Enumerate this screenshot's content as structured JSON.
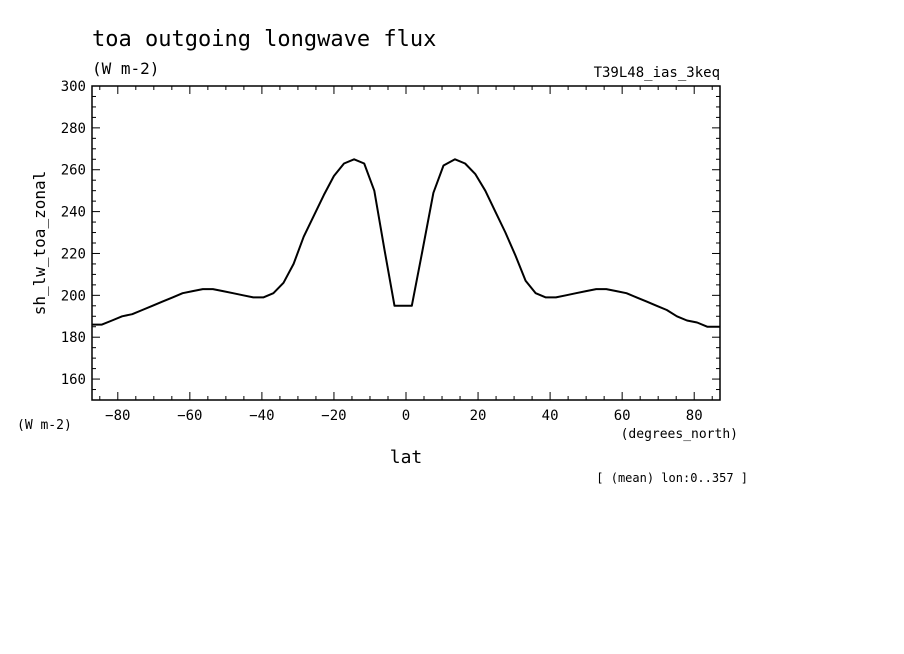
{
  "chart_data": {
    "type": "line",
    "title": "toa outgoing longwave flux",
    "subtitle": "(W m-2)",
    "experiment": "T39L48_ias_3keq",
    "ylabel": "sh_lw_toa_zonal",
    "yunits": "(W m-2)",
    "xlabel": "lat",
    "xunits": "(degrees_north)",
    "footnote": "[ (mean) lon:0..357 ]",
    "xlim": [
      -87.16,
      87.16
    ],
    "ylim": [
      150,
      300
    ],
    "xticks": [
      -80,
      -60,
      -40,
      -20,
      0,
      20,
      40,
      60,
      80
    ],
    "yticks": [
      160,
      180,
      200,
      220,
      240,
      260,
      280,
      300
    ],
    "grid": false,
    "series": [
      {
        "x": [
          -87.2,
          -84.4,
          -81.6,
          -78.8,
          -76.0,
          -73.2,
          -70.4,
          -67.6,
          -64.8,
          -62.0,
          -59.2,
          -56.4,
          -53.6,
          -50.8,
          -48.0,
          -45.2,
          -42.4,
          -39.6,
          -36.8,
          -34.0,
          -31.2,
          -28.4,
          -25.6,
          -22.8,
          -20.0,
          -17.2,
          -14.4,
          -11.6,
          -8.8,
          -6.0,
          -3.2,
          -0.4,
          1.6,
          4.4,
          7.6,
          10.4,
          13.6,
          16.4,
          19.2,
          22.0,
          24.8,
          27.6,
          30.4,
          33.2,
          36.0,
          38.8,
          41.6,
          44.4,
          47.2,
          50.0,
          52.8,
          55.6,
          58.4,
          61.2,
          64.0,
          66.8,
          69.6,
          72.4,
          75.2,
          78.0,
          80.8,
          83.6,
          86.4,
          87.2
        ],
        "values": [
          186,
          186,
          188,
          190,
          191,
          193,
          195,
          197,
          199,
          201,
          202,
          203,
          203,
          202,
          201,
          200,
          199,
          199,
          201,
          206,
          215,
          228,
          238,
          248,
          257,
          263,
          265,
          263,
          250,
          222,
          195,
          195,
          195,
          220,
          249,
          262,
          265,
          263,
          258,
          250,
          240,
          230,
          219,
          207,
          201,
          199,
          199,
          200,
          201,
          202,
          203,
          203,
          202,
          201,
          199,
          197,
          195,
          193,
          190,
          188,
          187,
          185,
          185,
          185
        ]
      }
    ]
  }
}
